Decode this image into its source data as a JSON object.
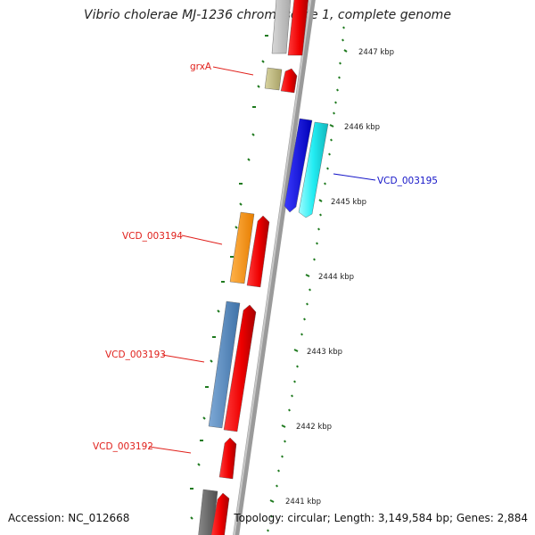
{
  "title": "Vibrio cholerae MJ-1236 chromosome 1, complete genome",
  "accession": "Accession: NC_012668",
  "summary": "Topology: circular; Length: 3,149,584 bp; Genes: 2,884",
  "colors": {
    "backbone": "#9a9a9a",
    "tick": "#1f7a1f",
    "red_label": "#e0201b",
    "blue_label": "#1515c8"
  },
  "kbp_labels": [
    "2447 kbp",
    "2446 kbp",
    "2445 kbp",
    "2444 kbp",
    "2443 kbp",
    "2442 kbp",
    "2441 kbp"
  ],
  "gene_labels": [
    {
      "text": "grxA",
      "color": "#e0201b"
    },
    {
      "text": "VCD_003195",
      "color": "#1515c8"
    },
    {
      "text": "VCD_003194",
      "color": "#e0201b"
    },
    {
      "text": "VCD_003193",
      "color": "#e0201b"
    },
    {
      "text": "VCD_003192",
      "color": "#e0201b"
    }
  ]
}
